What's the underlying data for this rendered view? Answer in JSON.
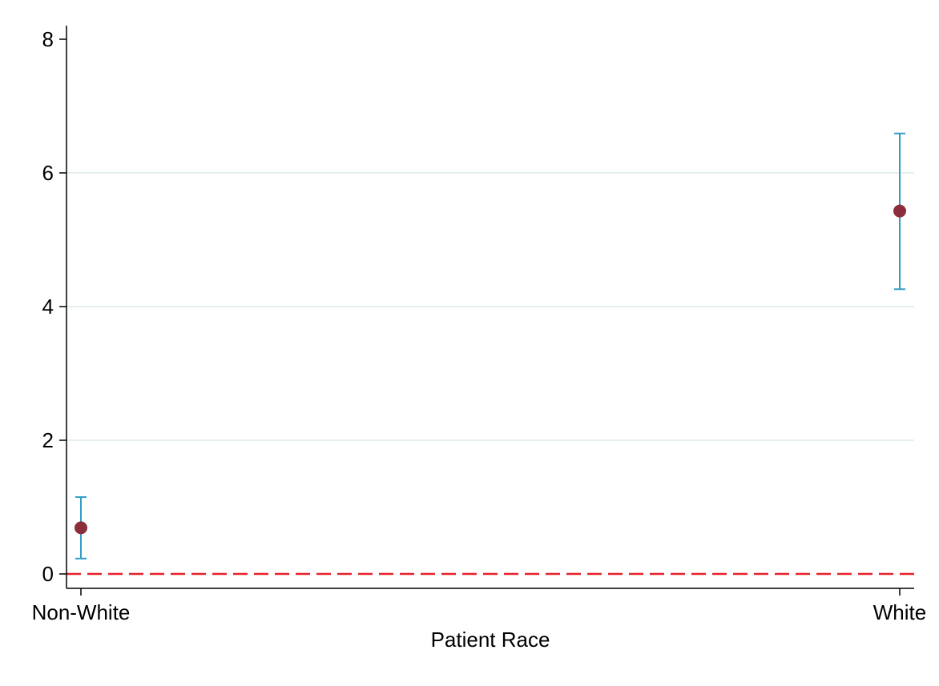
{
  "chart_data": {
    "type": "scatter",
    "title": "",
    "xlabel": "Patient Race",
    "ylabel": "",
    "categories": [
      "Non-White",
      "White"
    ],
    "series": [
      {
        "values": [
          0.69,
          5.43
        ],
        "ci_lower": [
          0.23,
          4.26
        ],
        "ci_upper": [
          1.15,
          6.59
        ]
      }
    ],
    "ylim": [
      0,
      8
    ],
    "yticks": [
      "0",
      "2",
      "4",
      "6",
      "8"
    ],
    "reference_line": {
      "y": 0,
      "style": "dashed",
      "color": "#e8202a"
    },
    "grid": "horizontal",
    "legend": "none",
    "colors": {
      "point": "#8c2d3b",
      "error_bar": "#2f9ec7",
      "grid": "#e6efef",
      "axis": "#000000"
    }
  }
}
